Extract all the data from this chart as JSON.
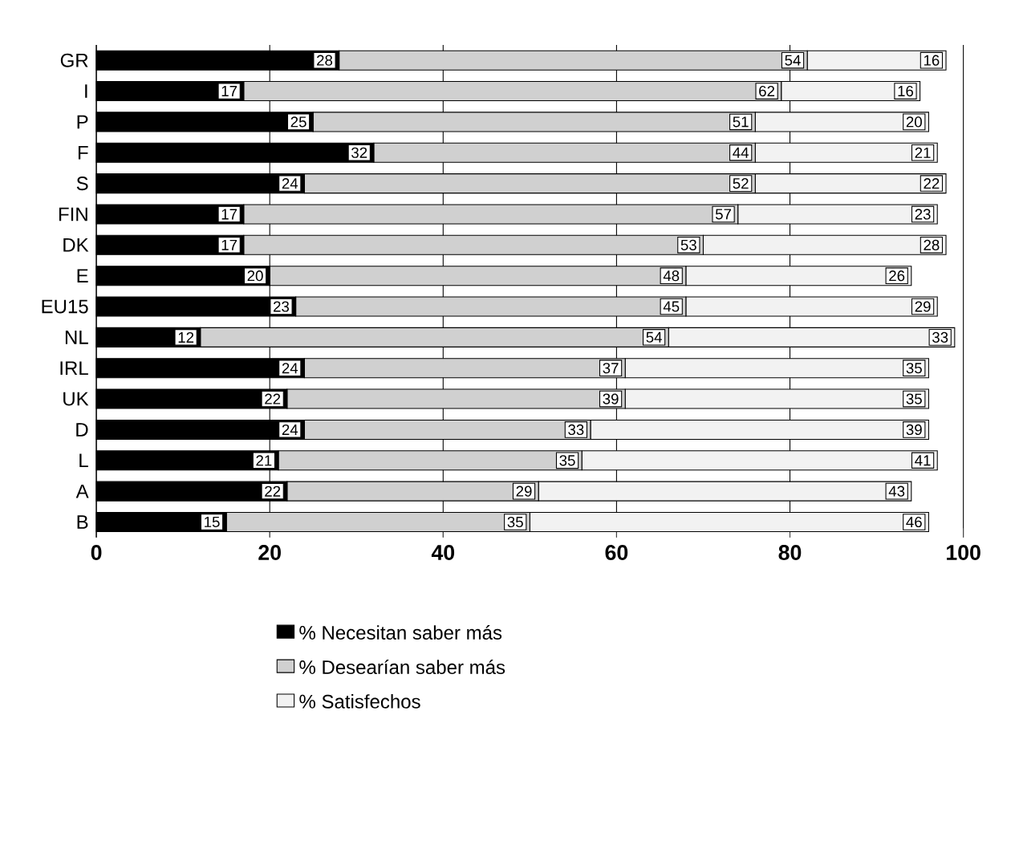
{
  "chart_data": {
    "type": "bar",
    "orientation": "horizontal",
    "stacked": true,
    "data_labels": true,
    "categories": [
      "GR",
      "I",
      "P",
      "F",
      "S",
      "FIN",
      "DK",
      "E",
      "EU15",
      "NL",
      "IRL",
      "UK",
      "D",
      "L",
      "A",
      "B"
    ],
    "series": [
      {
        "name": "% Necesitan saber más",
        "color": "#000000",
        "values": [
          28,
          17,
          25,
          32,
          24,
          17,
          17,
          20,
          23,
          12,
          24,
          22,
          24,
          21,
          22,
          15
        ]
      },
      {
        "name": "% Desearían saber más",
        "color": "#d0d0d0",
        "values": [
          54,
          62,
          51,
          44,
          52,
          57,
          53,
          48,
          45,
          54,
          37,
          39,
          33,
          35,
          29,
          35
        ]
      },
      {
        "name": "% Satisfechos",
        "color": "#f2f2f2",
        "values": [
          16,
          16,
          20,
          21,
          22,
          23,
          28,
          26,
          29,
          33,
          35,
          35,
          39,
          41,
          43,
          46
        ]
      }
    ],
    "xlim": [
      0,
      100
    ],
    "xticks": [
      0,
      20,
      40,
      60,
      80,
      100
    ],
    "grid": "x",
    "legend": "bottom"
  }
}
